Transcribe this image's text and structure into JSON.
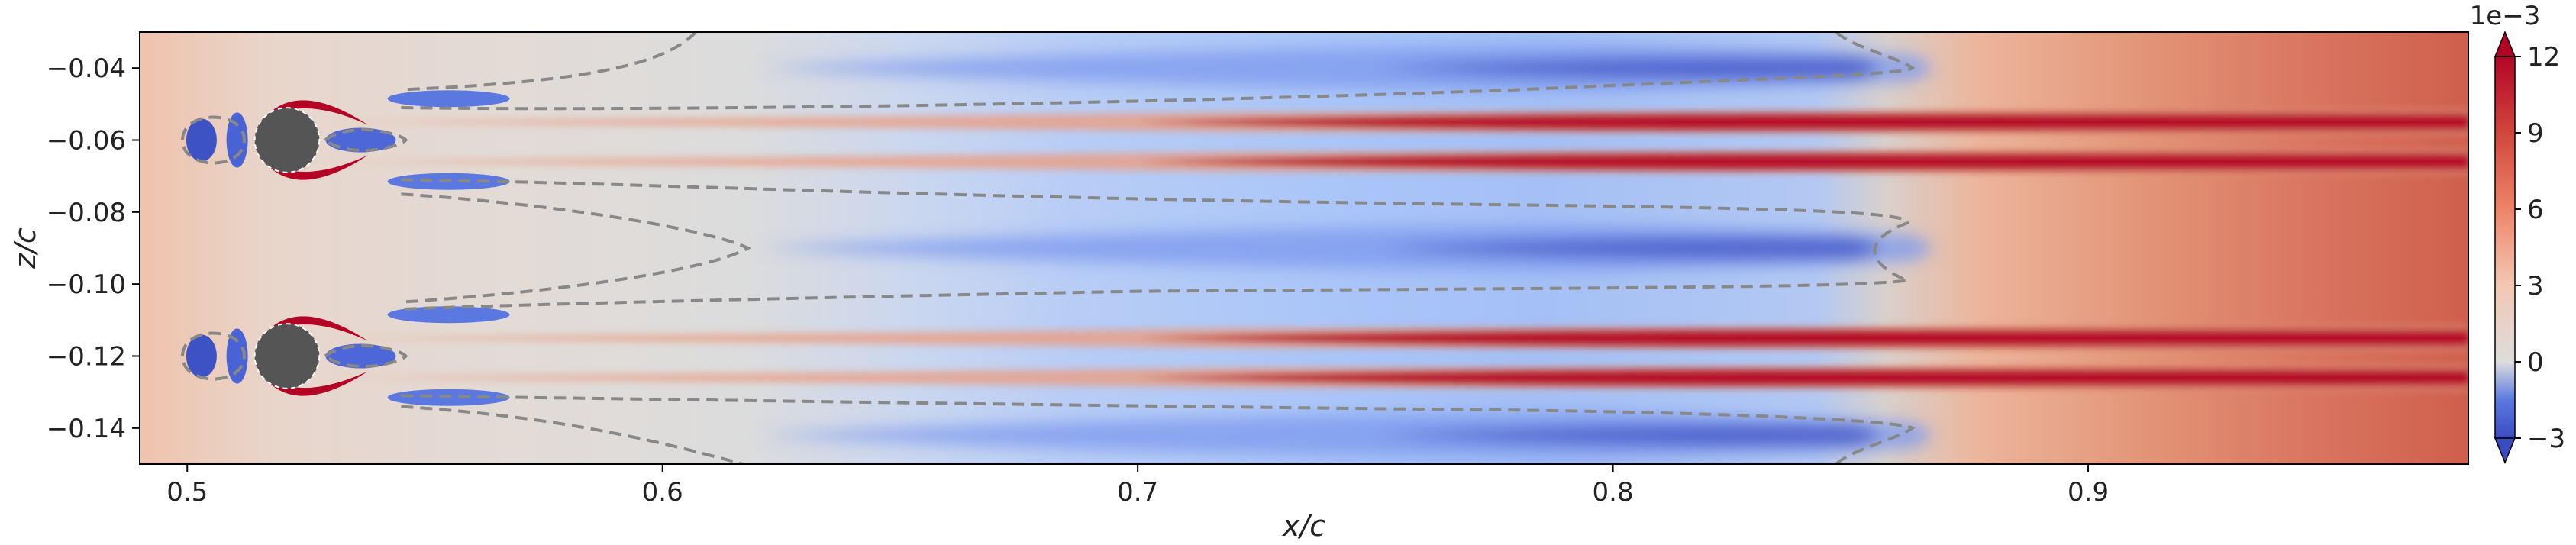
{
  "chart_data": {
    "type": "heatmap",
    "title": "",
    "xlabel": "x/c",
    "ylabel": "z/c",
    "xlim": [
      0.49,
      0.98
    ],
    "ylim": [
      -0.15,
      -0.03
    ],
    "xticks": [
      0.5,
      0.6,
      0.7,
      0.8,
      0.9
    ],
    "xtick_labels": [
      "0.5",
      "0.6",
      "0.7",
      "0.8",
      "0.9"
    ],
    "yticks": [
      -0.04,
      -0.06,
      -0.08,
      -0.1,
      -0.12,
      -0.14
    ],
    "ytick_labels": [
      "−0.04",
      "−0.06",
      "−0.08",
      "−0.10",
      "−0.12",
      "−0.14"
    ],
    "grid": false,
    "colormap": "coolwarm",
    "colorbar": {
      "min": -0.003,
      "max": 0.012,
      "ticks": [
        -3,
        0,
        3,
        6,
        9,
        12
      ],
      "tick_labels": [
        "−3",
        "0",
        "3",
        "6",
        "9",
        "12"
      ],
      "offset_label": "1e−3",
      "extend": "both"
    },
    "contour_zero_level": 0,
    "bodies": [
      {
        "x": 0.521,
        "z": -0.06,
        "r": 0.0068
      },
      {
        "x": 0.521,
        "z": -0.12,
        "r": 0.0068
      }
    ],
    "streaks_red": [
      -0.055,
      -0.066,
      -0.115,
      -0.126
    ],
    "lobes_blue": [
      -0.04,
      -0.09,
      -0.142
    ]
  },
  "colors": {
    "deep_blue": "#3b4cc0",
    "light_blue": "#aac7fd",
    "neutral": "#dddcdc",
    "light_red": "#f2a889",
    "deep_red": "#b40426",
    "body": "#555555",
    "contour": "#888888"
  }
}
